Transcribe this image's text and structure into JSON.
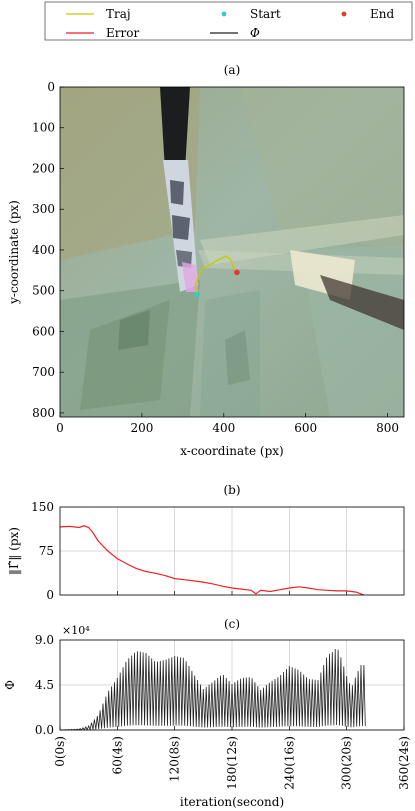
{
  "legend": [
    {
      "label": "Traj",
      "kind": "line",
      "color": "#c8c800"
    },
    {
      "label": "Start",
      "kind": "dot",
      "color": "#33cccc"
    },
    {
      "label": "End",
      "kind": "dot",
      "color": "#ee3333"
    },
    {
      "label": "Error",
      "kind": "line",
      "color": "#ee2222"
    },
    {
      "label": "Φ",
      "kind": "line",
      "color": "#222222"
    }
  ],
  "panel_labels": {
    "a": "(a)",
    "b": "(b)",
    "c": "(c)"
  },
  "chart_data": [
    {
      "type": "scatter",
      "panel": "(a)",
      "background": "camera image of a surgical instrument over a textured backdrop",
      "xlabel": "x-coordinate (px)",
      "ylabel": "y-coordinate (px)",
      "xlim": [
        0,
        840
      ],
      "ylim": [
        810,
        0
      ],
      "y_inverted": true,
      "xticks": [
        "0",
        "200",
        "400",
        "600",
        "800"
      ],
      "yticks": [
        "0",
        "100",
        "200",
        "300",
        "400",
        "500",
        "600",
        "700",
        "800"
      ],
      "xtick_values": [
        0,
        200,
        400,
        600,
        800
      ],
      "ytick_values": [
        0,
        100,
        200,
        300,
        400,
        500,
        600,
        700,
        800
      ],
      "series": [
        {
          "name": "Traj",
          "x": [
            335,
            330,
            338,
            348,
            360,
            385,
            405,
            418,
            422,
            428,
            432
          ],
          "y": [
            510,
            490,
            465,
            445,
            440,
            425,
            415,
            425,
            440,
            448,
            455
          ]
        },
        {
          "name": "Start",
          "x": [
            335
          ],
          "y": [
            510
          ]
        },
        {
          "name": "End",
          "x": [
            432
          ],
          "y": [
            455
          ]
        }
      ]
    },
    {
      "type": "line",
      "panel": "(b)",
      "ylabel": "‖Γ̂‖ (px)",
      "xlim": [
        0,
        360
      ],
      "ylim": [
        0,
        150
      ],
      "yticks": [
        "0",
        "75",
        "150"
      ],
      "ytick_values": [
        0,
        75,
        150
      ],
      "xtick_values": [
        60,
        120,
        180,
        240,
        300
      ],
      "grid": true,
      "series": [
        {
          "name": "Error",
          "x": [
            0,
            10,
            20,
            25,
            30,
            35,
            40,
            50,
            60,
            70,
            80,
            90,
            100,
            110,
            120,
            130,
            140,
            150,
            160,
            170,
            180,
            190,
            200,
            205,
            210,
            220,
            230,
            240,
            250,
            260,
            270,
            280,
            290,
            300,
            310,
            318
          ],
          "y": [
            116,
            117,
            115,
            118,
            115,
            105,
            92,
            75,
            62,
            53,
            45,
            40,
            37,
            33,
            28,
            26,
            24,
            22,
            19,
            15,
            12,
            10,
            8,
            2,
            8,
            6,
            9,
            12,
            14,
            12,
            9,
            8,
            7,
            7,
            5,
            0
          ]
        }
      ]
    },
    {
      "type": "line",
      "panel": "(c)",
      "ylabel": "Φ",
      "scale_label": "×10⁴",
      "xlabel": "iteration(second)",
      "xlim": [
        0,
        360
      ],
      "ylim": [
        0,
        9
      ],
      "yticks": [
        "0.0",
        "4.5",
        "9.0"
      ],
      "ytick_values": [
        0,
        4.5,
        9
      ],
      "xticks": [
        "0(0s)",
        "60(4s)",
        "120(8s)",
        "180(12s)",
        "240(16s)",
        "300(20s)",
        "360(24s)"
      ],
      "xtick_values": [
        0,
        60,
        120,
        180,
        240,
        300,
        360
      ],
      "grid": true,
      "oscillating": true,
      "oscillation_period": 3,
      "series": [
        {
          "name": "Φ (envelope)",
          "x": [
            0,
            20,
            30,
            40,
            50,
            60,
            70,
            80,
            90,
            100,
            110,
            120,
            130,
            140,
            150,
            160,
            170,
            180,
            190,
            200,
            210,
            220,
            230,
            240,
            250,
            260,
            270,
            280,
            285,
            290,
            295,
            300,
            305,
            310,
            315,
            320
          ],
          "y": [
            0,
            0.1,
            0.4,
            1.5,
            3.8,
            5.2,
            7.0,
            7.9,
            7.7,
            6.8,
            7.0,
            7.4,
            7.2,
            5.6,
            4.1,
            4.8,
            5.6,
            4.6,
            5.2,
            5.3,
            4.0,
            4.8,
            5.4,
            6.4,
            6.0,
            5.1,
            5.0,
            7.5,
            7.8,
            8.3,
            7.0,
            5.4,
            4.2,
            5.5,
            6.5,
            6.5
          ]
        }
      ]
    }
  ]
}
